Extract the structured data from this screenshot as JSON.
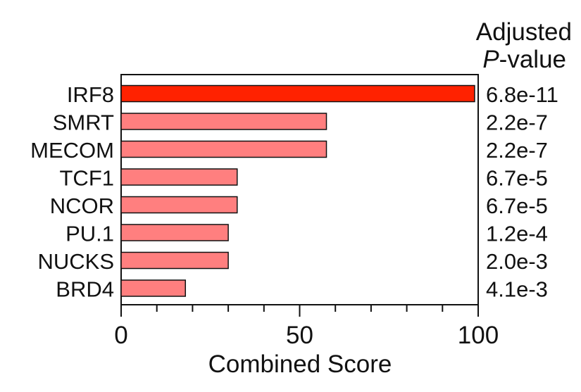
{
  "chart_data": {
    "type": "bar",
    "orientation": "horizontal",
    "categories": [
      "IRF8",
      "SMRT",
      "MECOM",
      "TCF1",
      "NCOR",
      "PU.1",
      "NUCKS",
      "BRD4"
    ],
    "values": [
      99,
      57.5,
      57.5,
      32.5,
      32.5,
      30,
      30,
      18
    ],
    "adjusted_p_values": [
      "6.8e-11",
      "2.2e-7",
      "2.2e-7",
      "6.7e-5",
      "6.7e-5",
      "1.2e-4",
      "2.0e-3",
      "4.1e-3"
    ],
    "p_value_header": {
      "line1": "Adjusted",
      "line2_italic": "P",
      "line2_rest": "-value"
    },
    "xlabel": "Combined Score",
    "ylabel": "",
    "xlim": [
      0,
      100
    ],
    "x_ticks": [
      "0",
      "50",
      "100"
    ],
    "colors": {
      "highlight": "#ff2200",
      "bar": "#ff7f7f",
      "stroke": "#111111"
    }
  }
}
